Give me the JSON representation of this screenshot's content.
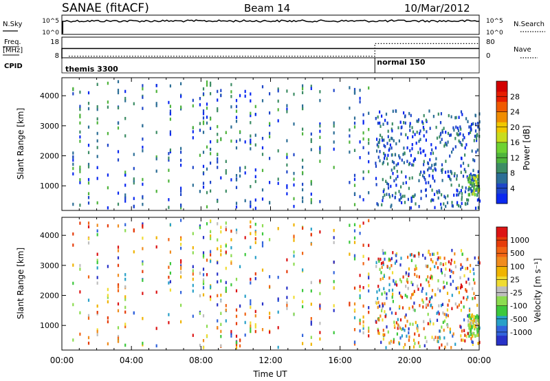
{
  "header": {
    "station": "SANAE (fitACF)",
    "beam": "Beam 14",
    "date": "10/Mar/2012"
  },
  "strips": {
    "nsky": {
      "label": "N.Sky",
      "ticks": [
        "10^5",
        "10^0"
      ],
      "right_ticks": [
        "10^5",
        "10^0"
      ],
      "right_label": "N.Search"
    },
    "freq": {
      "label_line1": "Freq.",
      "label_line2": "[MHz]",
      "ticks": [
        "18",
        "8"
      ],
      "right_ticks": [
        "80",
        "0"
      ],
      "right_label": "Nave",
      "freq_value": 12.5,
      "nave_before": 6,
      "nave_after": 55,
      "change_time": 18.0
    },
    "cpid": {
      "label": "CPID",
      "segments": [
        {
          "name": "themis 3300",
          "start": 0,
          "end": 18.0
        },
        {
          "name": "normal 150",
          "start": 18.0,
          "end": 24
        }
      ]
    }
  },
  "chart_data": [
    {
      "type": "heatmap",
      "panel": "power",
      "xlabel": "",
      "ylabel": "Slant Range [km]",
      "xlim": [
        0,
        24
      ],
      "ylim": [
        180,
        4600
      ],
      "yticks": [
        1000,
        2000,
        3000,
        4000
      ],
      "colorbar": {
        "label": "Power [dB]",
        "ticks": [
          "28",
          "24",
          "20",
          "16",
          "12",
          "8",
          "4"
        ],
        "colors": [
          "#0a28f0",
          "#1e46c8",
          "#2c6e96",
          "#3c8c64",
          "#4fb43c",
          "#6ed232",
          "#c8dc1e",
          "#f0c800",
          "#f08c00",
          "#f05a00",
          "#e61e00",
          "#d20000"
        ]
      }
    },
    {
      "type": "heatmap",
      "panel": "velocity",
      "xlabel": "Time UT",
      "ylabel": "Slant Range [km]",
      "xlim": [
        0,
        24
      ],
      "ylim": [
        180,
        4600
      ],
      "yticks": [
        1000,
        2000,
        3000,
        4000
      ],
      "xticks": [
        "00:00",
        "04:00",
        "08:00",
        "12:00",
        "16:00",
        "20:00",
        "00:00"
      ],
      "colorbar": {
        "label": "Velocity [m s⁻¹]",
        "ticks": [
          "1000",
          "500",
          "100",
          "25",
          "-25",
          "-100",
          "-500",
          "-1000"
        ],
        "colors": [
          "#2832c8",
          "#3264dc",
          "#28a0c8",
          "#3cc83c",
          "#8cdc50",
          "#bebebe",
          "#f0dc32",
          "#f0b400",
          "#f08c1e",
          "#f06414",
          "#e63c0a",
          "#dc1414"
        ]
      }
    }
  ]
}
